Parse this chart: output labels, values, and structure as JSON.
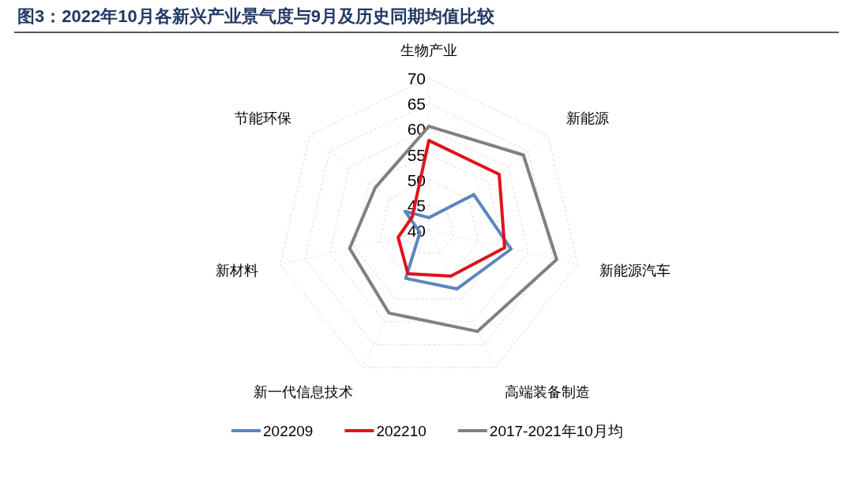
{
  "chart_data": {
    "type": "radar",
    "title": "图3：2022年10月各新兴产业景气度与9月及历史同期均值比较",
    "categories": [
      "生物产业",
      "新能源",
      "新能源汽车",
      "高端装备制造",
      "新一代信息技术",
      "新材料",
      "节能环保"
    ],
    "series": [
      {
        "name": "202209",
        "color": "#5b86bd",
        "values": [
          42.5,
          51.3,
          56.6,
          52.8,
          50.5,
          41.8,
          46.0
        ]
      },
      {
        "name": "202210",
        "color": "#e0121b",
        "values": [
          57.7,
          57.7,
          55.3,
          50.0,
          49.5,
          46.2,
          44.2
        ]
      },
      {
        "name": "2017-2021年10月均",
        "color": "#808080",
        "values": [
          60.5,
          63.8,
          65.8,
          62.1,
          58.1,
          56.0,
          53.5
        ]
      }
    ],
    "ylim": [
      40,
      70
    ],
    "yticks": [
      40,
      45,
      50,
      55,
      60,
      65,
      70
    ],
    "grid": true,
    "legend": "bottom"
  }
}
